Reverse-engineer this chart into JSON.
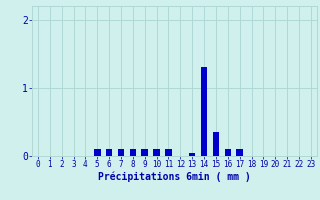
{
  "values": [
    0,
    0,
    0,
    0,
    0,
    0.1,
    0.1,
    0.1,
    0.1,
    0.1,
    0.1,
    0.1,
    0,
    0.05,
    1.3,
    0.35,
    0.1,
    0.1,
    0,
    0,
    0,
    0,
    0,
    0
  ],
  "bar_color": "#0000cc",
  "bg_color": "#cff0ec",
  "grid_color": "#b0d8d4",
  "axis_color": "#0000aa",
  "xlabel": "Précipitations 6min ( mm )",
  "xlabel_fontsize": 7,
  "tick_fontsize": 5.5,
  "ylim": [
    0,
    2.2
  ],
  "yticks": [
    0,
    1,
    2
  ],
  "bar_width": 0.55
}
